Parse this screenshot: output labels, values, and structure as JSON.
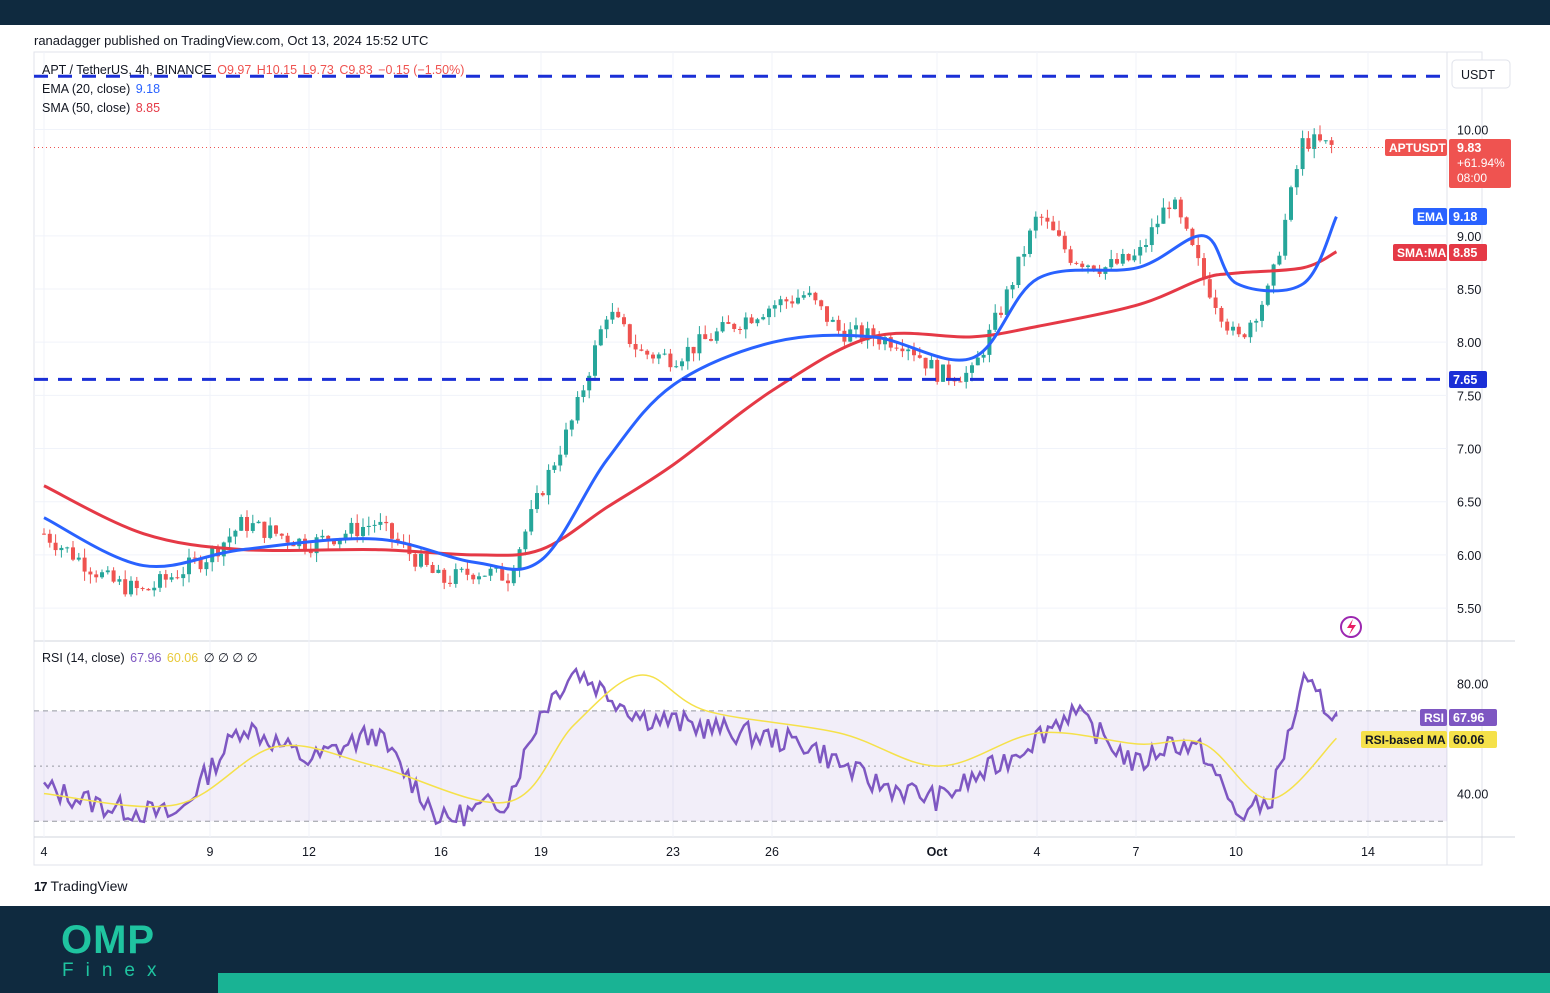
{
  "header": {
    "published": "ranadagger published on TradingView.com, Oct 13, 2024 15:52 UTC"
  },
  "legend": {
    "symbol": "APT / TetherUS, 4h, BINANCE",
    "open": "O9.97",
    "high": "H10.15",
    "low": "L9.73",
    "close": "C9.83",
    "change": "−0.15 (−1.50%)",
    "ema_label": "EMA (20, close)",
    "ema_value": "9.18",
    "sma_label": "SMA (50, close)",
    "sma_value": "8.85",
    "rsi_label": "RSI (14, close)",
    "rsi_value": "67.96",
    "rsi_ma_value": "60.06",
    "rsi_extra": "∅ ∅ ∅ ∅"
  },
  "currency_label": "USDT",
  "price_tags": {
    "symbol_tag": "APTUSDT",
    "price": "9.83",
    "change_pct": "+61.94%",
    "countdown": "08:00",
    "ema_tag": "EMA",
    "ema_price": "9.18",
    "sma_tag": "SMA:MA",
    "sma_price": "8.85",
    "support_price": "7.65",
    "rsi_tag": "RSI",
    "rsi_val": "67.96",
    "rsi_ma_tag": "RSI-based MA",
    "rsi_ma_val": "60.06"
  },
  "footer": {
    "tradingview": "TradingView",
    "brand_top": "OMP",
    "brand_bottom": "Finex"
  },
  "colors": {
    "bull": "#26a69a",
    "bear": "#ef5350",
    "ema": "#2962ff",
    "sma": "#e53946",
    "rsi": "#7e57c2",
    "rsi_ma": "#f5e14a",
    "levels": "#1a2fd6",
    "footer_bg": "#0f2a3f",
    "brand": "#1fc4a0"
  },
  "chart_data": [
    {
      "type": "line",
      "title": "APT / TetherUS, 4h, BINANCE",
      "x_ticks": [
        "4",
        "9",
        "12",
        "16",
        "19",
        "23",
        "26",
        "Oct",
        "4",
        "7",
        "10",
        "14"
      ],
      "y_ticks": [
        5.5,
        6.0,
        6.5,
        7.0,
        7.5,
        8.0,
        8.5,
        9.0,
        10.0
      ],
      "ylim": [
        5.2,
        10.7
      ],
      "horizontal_levels": [
        7.65,
        10.5
      ],
      "last_price": 9.83,
      "series": [
        {
          "name": "APTUSDT close (approx.)",
          "x": [
            "Sep 4",
            "Sep 6",
            "Sep 7",
            "Sep 9",
            "Sep 10",
            "Sep 12",
            "Sep 14",
            "Sep 16",
            "Sep 17",
            "Sep 18",
            "Sep 19",
            "Sep 20",
            "Sep 21",
            "Sep 22",
            "Sep 23",
            "Sep 25",
            "Sep 26",
            "Sep 27",
            "Sep 28",
            "Sep 30",
            "Oct 1",
            "Oct 2",
            "Oct 3",
            "Oct 4",
            "Oct 5",
            "Oct 6",
            "Oct 7",
            "Oct 8",
            "Oct 9",
            "Oct 10",
            "Oct 11",
            "Oct 12",
            "Oct 13"
          ],
          "values": [
            6.2,
            5.75,
            5.65,
            6.0,
            6.3,
            6.1,
            6.3,
            5.75,
            5.85,
            5.8,
            6.6,
            7.3,
            8.3,
            7.9,
            7.85,
            8.2,
            8.35,
            8.45,
            8.1,
            8.0,
            7.7,
            7.7,
            8.4,
            9.2,
            8.8,
            8.7,
            8.8,
            9.35,
            8.6,
            8.0,
            8.5,
            9.9,
            9.83
          ]
        },
        {
          "name": "EMA (20, close)",
          "x": [
            "Sep 4",
            "Sep 7",
            "Sep 10",
            "Sep 14",
            "Sep 17",
            "Sep 19",
            "Sep 21",
            "Sep 23",
            "Sep 26",
            "Sep 29",
            "Oct 2",
            "Oct 4",
            "Oct 7",
            "Oct 9",
            "Oct 10",
            "Oct 12",
            "Oct 13"
          ],
          "values": [
            6.35,
            5.9,
            6.05,
            6.15,
            5.93,
            5.95,
            6.9,
            7.6,
            8.0,
            8.05,
            7.85,
            8.6,
            8.7,
            9.0,
            8.55,
            8.55,
            9.18
          ]
        },
        {
          "name": "SMA (50, close)",
          "x": [
            "Sep 4",
            "Sep 7",
            "Sep 10",
            "Sep 14",
            "Sep 17",
            "Sep 19",
            "Sep 21",
            "Sep 23",
            "Sep 26",
            "Sep 29",
            "Oct 2",
            "Oct 4",
            "Oct 7",
            "Oct 9",
            "Oct 10",
            "Oct 12",
            "Oct 13"
          ],
          "values": [
            6.65,
            6.2,
            6.05,
            6.05,
            6.0,
            6.05,
            6.45,
            6.85,
            7.55,
            8.05,
            8.05,
            8.15,
            8.35,
            8.6,
            8.65,
            8.7,
            8.85
          ]
        }
      ]
    },
    {
      "type": "line",
      "title": "RSI (14, close)",
      "y_ticks": [
        40.0,
        80.0
      ],
      "ylim": [
        25,
        95
      ],
      "bands": [
        70,
        50,
        30
      ],
      "series": [
        {
          "name": "RSI (14, close)",
          "x": [
            "Sep 4",
            "Sep 6",
            "Sep 8",
            "Sep 10",
            "Sep 12",
            "Sep 14",
            "Sep 16",
            "Sep 18",
            "Sep 19",
            "Sep 20",
            "Sep 22",
            "Sep 23",
            "Sep 25",
            "Sep 27",
            "Sep 29",
            "Oct 1",
            "Oct 3",
            "Oct 5",
            "Oct 7",
            "Oct 8",
            "Oct 9",
            "Oct 10",
            "Oct 11",
            "Oct 12",
            "Oct 13"
          ],
          "values": [
            42,
            35,
            32,
            65,
            52,
            62,
            30,
            38,
            70,
            85,
            68,
            66,
            62,
            58,
            44,
            38,
            52,
            70,
            50,
            59,
            55,
            32,
            37,
            80,
            67.96
          ]
        },
        {
          "name": "RSI-based MA",
          "x": [
            "Sep 4",
            "Sep 8",
            "Sep 11",
            "Sep 14",
            "Sep 18",
            "Sep 20",
            "Sep 22",
            "Sep 24",
            "Sep 28",
            "Oct 1",
            "Oct 4",
            "Oct 7",
            "Oct 9",
            "Oct 11",
            "Oct 13"
          ],
          "values": [
            40,
            36,
            57,
            50,
            37,
            65,
            83,
            70,
            62,
            50,
            62,
            58,
            58,
            38,
            60.06
          ]
        }
      ]
    }
  ]
}
